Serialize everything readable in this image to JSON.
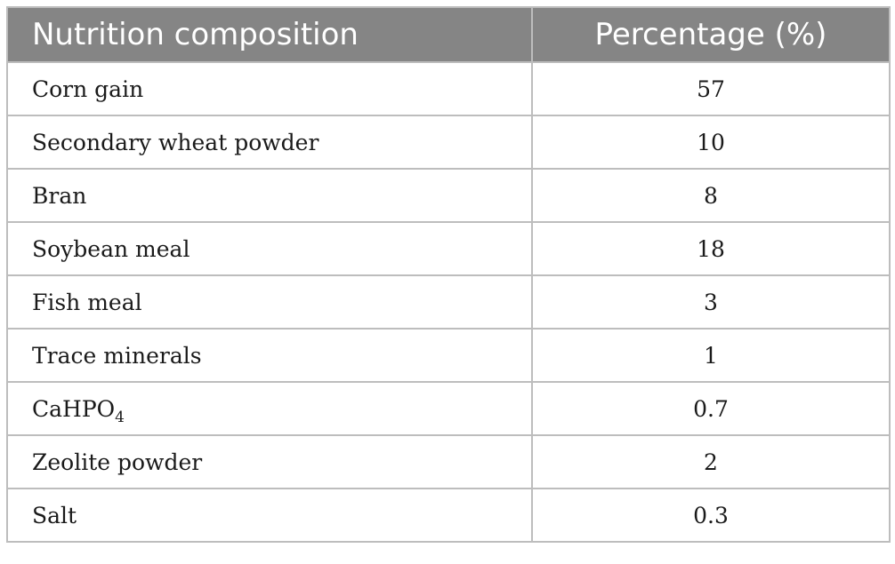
{
  "table": {
    "headers": [
      "Nutrition composition",
      "Percentage (%)"
    ],
    "rows": [
      {
        "name": "Corn gain",
        "value": "57"
      },
      {
        "name": "Secondary wheat powder",
        "value": "10"
      },
      {
        "name": "Bran",
        "value": "8"
      },
      {
        "name": "Soybean meal",
        "value": "18"
      },
      {
        "name": "Fish meal",
        "value": "3"
      },
      {
        "name": "Trace minerals",
        "value": "1"
      },
      {
        "name": "CaHPO",
        "name_subscript": "4",
        "value": "0.7"
      },
      {
        "name": "Zeolite powder",
        "value": "2"
      },
      {
        "name": "Salt",
        "value": "0.3"
      }
    ]
  }
}
